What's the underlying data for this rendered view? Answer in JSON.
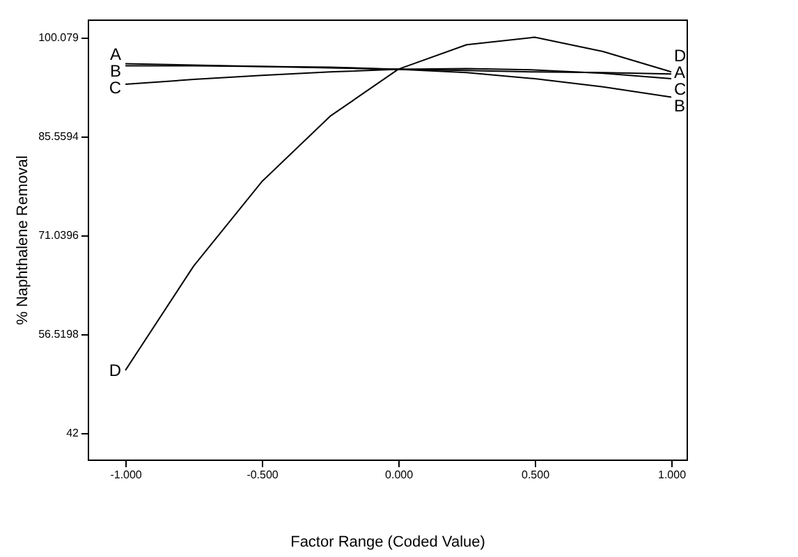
{
  "chart_data": {
    "type": "line",
    "xlabel": "Factor Range (Coded Value)",
    "ylabel": "% Naphthalene Removal",
    "xlim": [
      -1.138,
      1.056
    ],
    "ylim": [
      38.1,
      102.7
    ],
    "xticks": [
      {
        "value": -1,
        "label": "-1.000"
      },
      {
        "value": -0.5,
        "label": "-0.500"
      },
      {
        "value": 0,
        "label": "0.000"
      },
      {
        "value": 0.5,
        "label": "0.500"
      },
      {
        "value": 1,
        "label": "1.000"
      }
    ],
    "yticks": [
      42,
      56.5198,
      71.0396,
      85.5594,
      100.079
    ],
    "x": [
      -1,
      -0.75,
      -0.5,
      -0.25,
      0,
      0.25,
      0.5,
      0.75,
      1
    ],
    "grid": false,
    "legend": false,
    "marker": "none",
    "line_style": "solid",
    "series": [
      {
        "name": "A",
        "color": "#000000",
        "values": [
          96.2,
          96.0,
          95.8,
          95.6,
          95.4,
          95.2,
          95.0,
          94.9,
          94.7
        ]
      },
      {
        "name": "B",
        "color": "#000000",
        "values": [
          95.9,
          95.9,
          95.8,
          95.7,
          95.4,
          94.9,
          94.0,
          92.8,
          91.3
        ]
      },
      {
        "name": "C",
        "color": "#000000",
        "values": [
          93.2,
          93.9,
          94.5,
          95.0,
          95.4,
          95.5,
          95.3,
          94.8,
          94.0
        ]
      },
      {
        "name": "D",
        "color": "#000000",
        "values": [
          51.2,
          66.5,
          78.9,
          88.5,
          95.4,
          99.0,
          100.1,
          98.0,
          95.0
        ]
      }
    ]
  }
}
